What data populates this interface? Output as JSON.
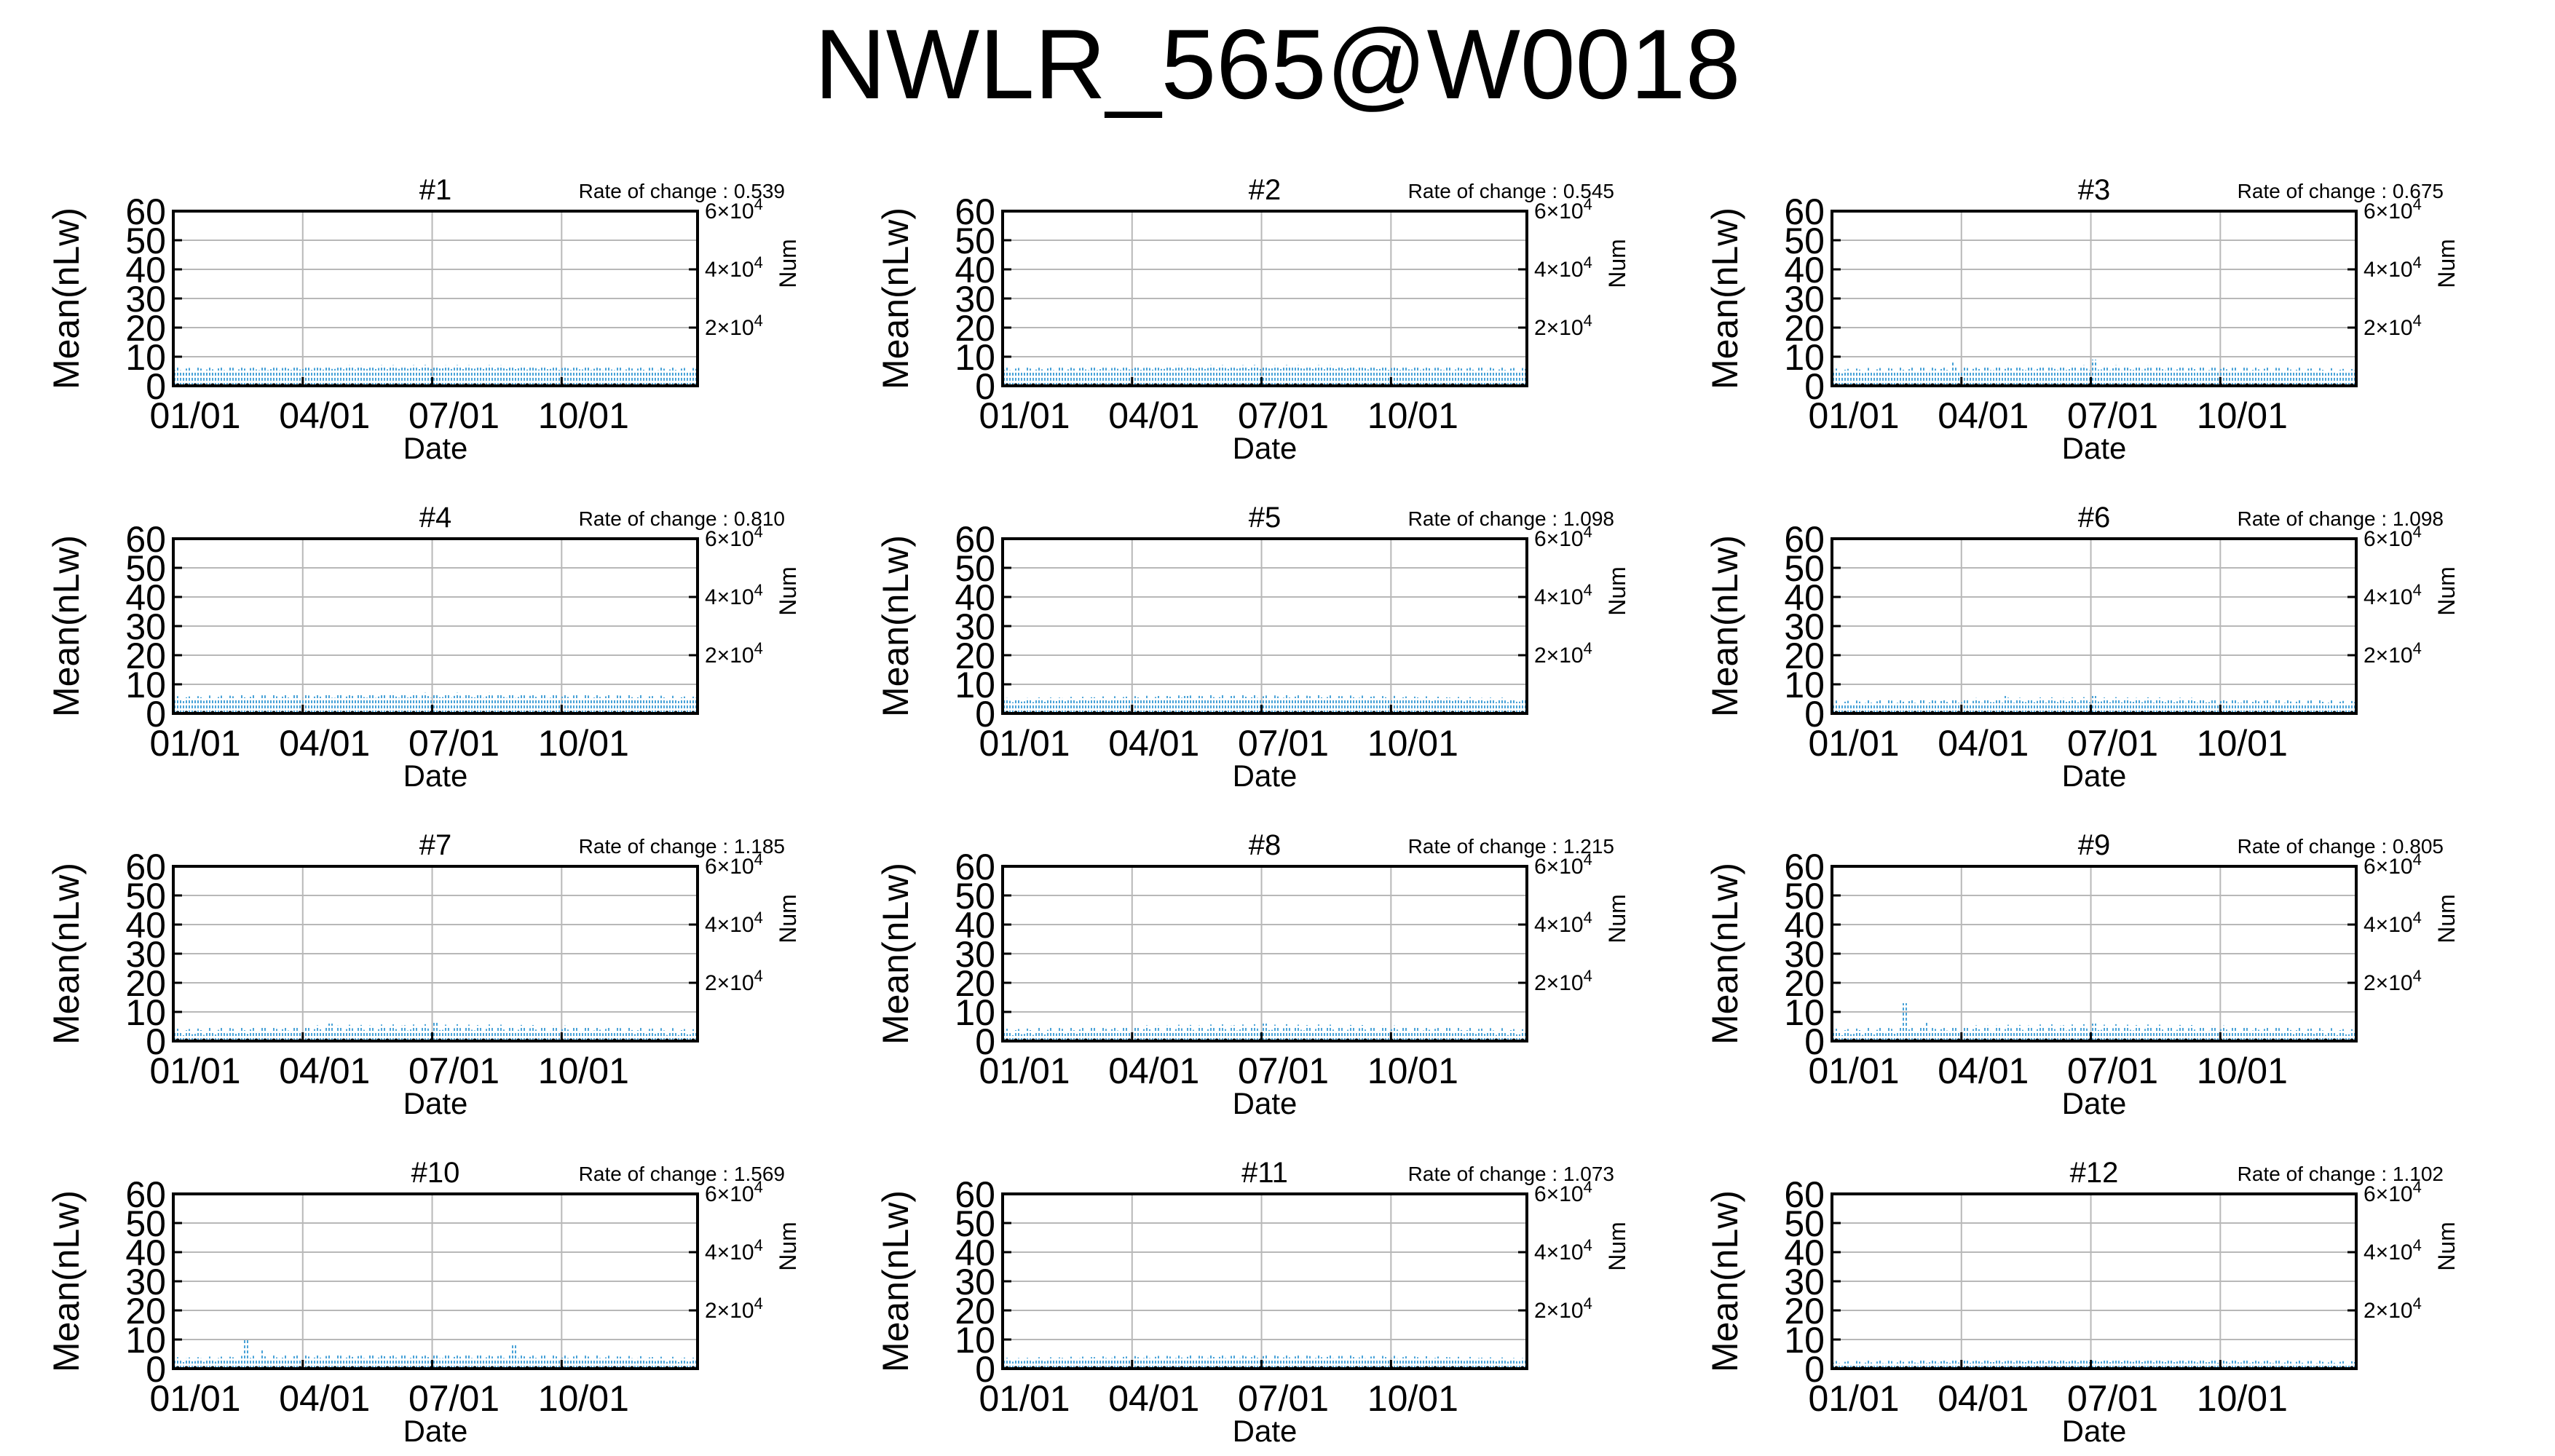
{
  "title": "NWLR_565@W0018",
  "chart_data": [
    {
      "type": "bar",
      "panel_title": "#1",
      "rate_label": "Rate of change : 0.539",
      "xlabel": "Date",
      "ylabel": "Mean(nLw)",
      "y2label": "Num",
      "x_ticks": [
        "01/01",
        "04/01",
        "07/01",
        "10/01"
      ],
      "y_ticks": [
        "0",
        "10",
        "20",
        "30",
        "40",
        "50",
        "60"
      ],
      "y2_ticks": [
        {
          "base": "2×10",
          "exp": "4"
        },
        {
          "base": "4×10",
          "exp": "4"
        },
        {
          "base": "6×10",
          "exp": "4"
        }
      ],
      "ylim": [
        0,
        60
      ],
      "y2lim": [
        0,
        60000
      ],
      "grid": true,
      "series": [
        {
          "color": "#4aa3d8",
          "baseline": 5.5,
          "variation": 1.2,
          "spikes": []
        },
        {
          "color": "#1a1a1a",
          "baseline": 0.8
        }
      ]
    },
    {
      "type": "bar",
      "panel_title": "#2",
      "rate_label": "Rate of change : 0.545",
      "xlabel": "Date",
      "ylabel": "Mean(nLw)",
      "y2label": "Num",
      "x_ticks": [
        "01/01",
        "04/01",
        "07/01",
        "10/01"
      ],
      "y_ticks": [
        "0",
        "10",
        "20",
        "30",
        "40",
        "50",
        "60"
      ],
      "y2_ticks": [
        {
          "base": "2×10",
          "exp": "4"
        },
        {
          "base": "4×10",
          "exp": "4"
        },
        {
          "base": "6×10",
          "exp": "4"
        }
      ],
      "ylim": [
        0,
        60
      ],
      "y2lim": [
        0,
        60000
      ],
      "grid": true,
      "series": [
        {
          "color": "#4aa3d8",
          "baseline": 5.5,
          "variation": 1.2,
          "spikes": [
            [
              0.55,
              7
            ]
          ]
        },
        {
          "color": "#1a1a1a",
          "baseline": 0.8
        }
      ]
    },
    {
      "type": "bar",
      "panel_title": "#3",
      "rate_label": "Rate of change : 0.675",
      "xlabel": "Date",
      "ylabel": "Mean(nLw)",
      "y2label": "Num",
      "x_ticks": [
        "01/01",
        "04/01",
        "07/01",
        "10/01"
      ],
      "y_ticks": [
        "0",
        "10",
        "20",
        "30",
        "40",
        "50",
        "60"
      ],
      "y2_ticks": [
        {
          "base": "2×10",
          "exp": "4"
        },
        {
          "base": "4×10",
          "exp": "4"
        },
        {
          "base": "6×10",
          "exp": "4"
        }
      ],
      "ylim": [
        0,
        60
      ],
      "y2lim": [
        0,
        60000
      ],
      "grid": true,
      "series": [
        {
          "color": "#4aa3d8",
          "baseline": 5,
          "variation": 1.5,
          "spikes": [
            [
              0.23,
              8
            ],
            [
              0.5,
              9
            ]
          ]
        },
        {
          "color": "#1a1a1a",
          "baseline": 0.8
        }
      ]
    },
    {
      "type": "bar",
      "panel_title": "#4",
      "rate_label": "Rate of change : 0.810",
      "xlabel": "Date",
      "ylabel": "Mean(nLw)",
      "y2label": "Num",
      "x_ticks": [
        "01/01",
        "04/01",
        "07/01",
        "10/01"
      ],
      "y_ticks": [
        "0",
        "10",
        "20",
        "30",
        "40",
        "50",
        "60"
      ],
      "y2_ticks": [
        {
          "base": "2×10",
          "exp": "4"
        },
        {
          "base": "4×10",
          "exp": "4"
        },
        {
          "base": "6×10",
          "exp": "4"
        }
      ],
      "ylim": [
        0,
        60
      ],
      "y2lim": [
        0,
        60000
      ],
      "grid": true,
      "series": [
        {
          "color": "#4aa3d8",
          "baseline": 5,
          "variation": 1.5,
          "spikes": [
            [
              0.5,
              7
            ]
          ]
        },
        {
          "color": "#1a1a1a",
          "baseline": 0.8
        }
      ]
    },
    {
      "type": "bar",
      "panel_title": "#5",
      "rate_label": "Rate of change : 1.098",
      "xlabel": "Date",
      "ylabel": "Mean(nLw)",
      "y2label": "Num",
      "x_ticks": [
        "01/01",
        "04/01",
        "07/01",
        "10/01"
      ],
      "y_ticks": [
        "0",
        "10",
        "20",
        "30",
        "40",
        "50",
        "60"
      ],
      "y2_ticks": [
        {
          "base": "2×10",
          "exp": "4"
        },
        {
          "base": "4×10",
          "exp": "4"
        },
        {
          "base": "6×10",
          "exp": "4"
        }
      ],
      "ylim": [
        0,
        60
      ],
      "y2lim": [
        0,
        60000
      ],
      "grid": true,
      "series": [
        {
          "color": "#4aa3d8",
          "baseline": 4.5,
          "variation": 1.3,
          "spikes": [
            [
              0.35,
              6
            ]
          ]
        },
        {
          "color": "#1a1a1a",
          "baseline": 0.8
        }
      ]
    },
    {
      "type": "bar",
      "panel_title": "#6",
      "rate_label": "Rate of change : 1.098",
      "xlabel": "Date",
      "ylabel": "Mean(nLw)",
      "y2label": "Num",
      "x_ticks": [
        "01/01",
        "04/01",
        "07/01",
        "10/01"
      ],
      "y_ticks": [
        "0",
        "10",
        "20",
        "30",
        "40",
        "50",
        "60"
      ],
      "y2_ticks": [
        {
          "base": "2×10",
          "exp": "4"
        },
        {
          "base": "4×10",
          "exp": "4"
        },
        {
          "base": "6×10",
          "exp": "4"
        }
      ],
      "ylim": [
        0,
        60
      ],
      "y2lim": [
        0,
        60000
      ],
      "grid": true,
      "series": [
        {
          "color": "#4aa3d8",
          "baseline": 3.5,
          "variation": 1.5,
          "spikes": [
            [
              0.33,
              6
            ],
            [
              0.5,
              6
            ]
          ]
        },
        {
          "color": "#1a1a1a",
          "baseline": 0.8
        }
      ]
    },
    {
      "type": "bar",
      "panel_title": "#7",
      "rate_label": "Rate of change : 1.185",
      "xlabel": "Date",
      "ylabel": "Mean(nLw)",
      "y2label": "Num",
      "x_ticks": [
        "01/01",
        "04/01",
        "07/01",
        "10/01"
      ],
      "y_ticks": [
        "0",
        "10",
        "20",
        "30",
        "40",
        "50",
        "60"
      ],
      "y2_ticks": [
        {
          "base": "2×10",
          "exp": "4"
        },
        {
          "base": "4×10",
          "exp": "4"
        },
        {
          "base": "6×10",
          "exp": "4"
        }
      ],
      "ylim": [
        0,
        60
      ],
      "y2lim": [
        0,
        60000
      ],
      "grid": true,
      "series": [
        {
          "color": "#4aa3d8",
          "baseline": 3,
          "variation": 2,
          "spikes": [
            [
              0.3,
              6
            ],
            [
              0.5,
              6.5
            ]
          ]
        },
        {
          "color": "#1a1a1a",
          "baseline": 0.8
        }
      ]
    },
    {
      "type": "bar",
      "panel_title": "#8",
      "rate_label": "Rate of change : 1.215",
      "xlabel": "Date",
      "ylabel": "Mean(nLw)",
      "y2label": "Num",
      "x_ticks": [
        "01/01",
        "04/01",
        "07/01",
        "10/01"
      ],
      "y_ticks": [
        "0",
        "10",
        "20",
        "30",
        "40",
        "50",
        "60"
      ],
      "y2_ticks": [
        {
          "base": "2×10",
          "exp": "4"
        },
        {
          "base": "4×10",
          "exp": "4"
        },
        {
          "base": "6×10",
          "exp": "4"
        }
      ],
      "ylim": [
        0,
        60
      ],
      "y2lim": [
        0,
        60000
      ],
      "grid": true,
      "series": [
        {
          "color": "#4aa3d8",
          "baseline": 3,
          "variation": 2,
          "spikes": [
            [
              0.5,
              6
            ]
          ]
        },
        {
          "color": "#1a1a1a",
          "baseline": 0.8
        }
      ]
    },
    {
      "type": "bar",
      "panel_title": "#9",
      "rate_label": "Rate of change : 0.805",
      "xlabel": "Date",
      "ylabel": "Mean(nLw)",
      "y2label": "Num",
      "x_ticks": [
        "01/01",
        "04/01",
        "07/01",
        "10/01"
      ],
      "y_ticks": [
        "0",
        "10",
        "20",
        "30",
        "40",
        "50",
        "60"
      ],
      "y2_ticks": [
        {
          "base": "2×10",
          "exp": "4"
        },
        {
          "base": "4×10",
          "exp": "4"
        },
        {
          "base": "6×10",
          "exp": "4"
        }
      ],
      "ylim": [
        0,
        60
      ],
      "y2lim": [
        0,
        60000
      ],
      "grid": true,
      "series": [
        {
          "color": "#4aa3d8",
          "baseline": 3,
          "variation": 2,
          "spikes": [
            [
              0.14,
              13
            ],
            [
              0.18,
              7
            ],
            [
              0.5,
              6
            ]
          ]
        },
        {
          "color": "#1a1a1a",
          "baseline": 0.8
        }
      ]
    },
    {
      "type": "bar",
      "panel_title": "#10",
      "rate_label": "Rate of change : 1.569",
      "xlabel": "Date",
      "ylabel": "Mean(nLw)",
      "y2label": "Num",
      "x_ticks": [
        "01/01",
        "04/01",
        "07/01",
        "10/01"
      ],
      "y_ticks": [
        "0",
        "10",
        "20",
        "30",
        "40",
        "50",
        "60"
      ],
      "y2_ticks": [
        {
          "base": "2×10",
          "exp": "4"
        },
        {
          "base": "4×10",
          "exp": "4"
        },
        {
          "base": "6×10",
          "exp": "4"
        }
      ],
      "ylim": [
        0,
        60
      ],
      "y2lim": [
        0,
        60000
      ],
      "grid": true,
      "series": [
        {
          "color": "#4aa3d8",
          "baseline": 3,
          "variation": 1.5,
          "spikes": [
            [
              0.14,
              10
            ],
            [
              0.17,
              7
            ],
            [
              0.65,
              8
            ]
          ]
        },
        {
          "color": "#1a1a1a",
          "baseline": 0.8
        }
      ]
    },
    {
      "type": "bar",
      "panel_title": "#11",
      "rate_label": "Rate of change : 1.073",
      "xlabel": "Date",
      "ylabel": "Mean(nLw)",
      "y2label": "Num",
      "x_ticks": [
        "01/01",
        "04/01",
        "07/01",
        "10/01"
      ],
      "y_ticks": [
        "0",
        "10",
        "20",
        "30",
        "40",
        "50",
        "60"
      ],
      "y2_ticks": [
        {
          "base": "2×10",
          "exp": "4"
        },
        {
          "base": "4×10",
          "exp": "4"
        },
        {
          "base": "6×10",
          "exp": "4"
        }
      ],
      "ylim": [
        0,
        60
      ],
      "y2lim": [
        0,
        60000
      ],
      "grid": true,
      "series": [
        {
          "color": "#4aa3d8",
          "baseline": 3,
          "variation": 1.2,
          "spikes": []
        },
        {
          "color": "#1a1a1a",
          "baseline": 0.8
        }
      ]
    },
    {
      "type": "bar",
      "panel_title": "#12",
      "rate_label": "Rate of change : 1.102",
      "xlabel": "Date",
      "ylabel": "Mean(nLw)",
      "y2label": "Num",
      "x_ticks": [
        "01/01",
        "04/01",
        "07/01",
        "10/01"
      ],
      "y_ticks": [
        "0",
        "10",
        "20",
        "30",
        "40",
        "50",
        "60"
      ],
      "y2_ticks": [
        {
          "base": "2×10",
          "exp": "4"
        },
        {
          "base": "4×10",
          "exp": "4"
        },
        {
          "base": "6×10",
          "exp": "4"
        }
      ],
      "ylim": [
        0,
        60
      ],
      "y2lim": [
        0,
        60000
      ],
      "grid": true,
      "series": [
        {
          "color": "#4aa3d8",
          "baseline": 2,
          "variation": 1.0,
          "spikes": []
        },
        {
          "color": "#1a1a1a",
          "baseline": 0.8
        }
      ]
    }
  ]
}
